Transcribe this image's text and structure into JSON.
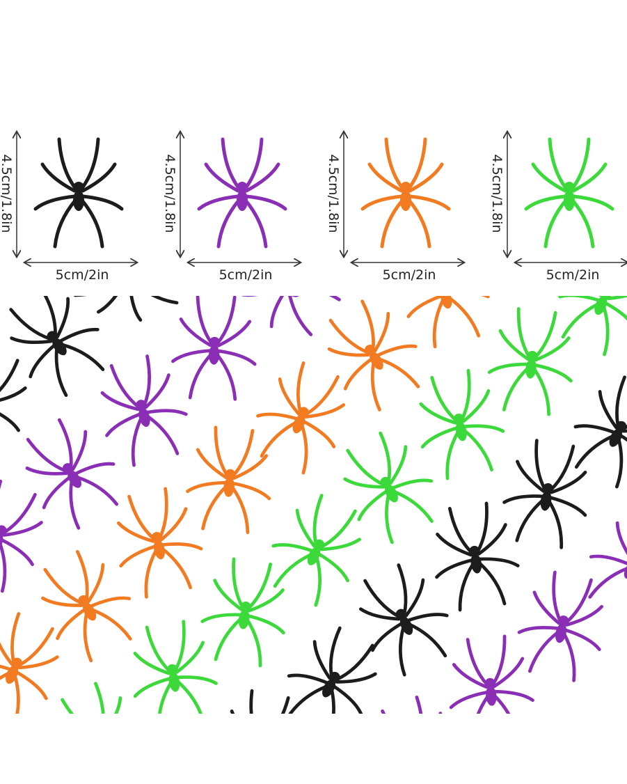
{
  "items": [
    {
      "height": "4.5cm/1.8in",
      "width": "5cm/2in"
    },
    {
      "height": "4.5cm/1.8in",
      "width": "5cm/2in"
    },
    {
      "height": "4.5cm/1.8in",
      "width": "5cm/2in"
    },
    {
      "height": "4.5cm/1.8in",
      "width": "5cm/2in"
    }
  ]
}
